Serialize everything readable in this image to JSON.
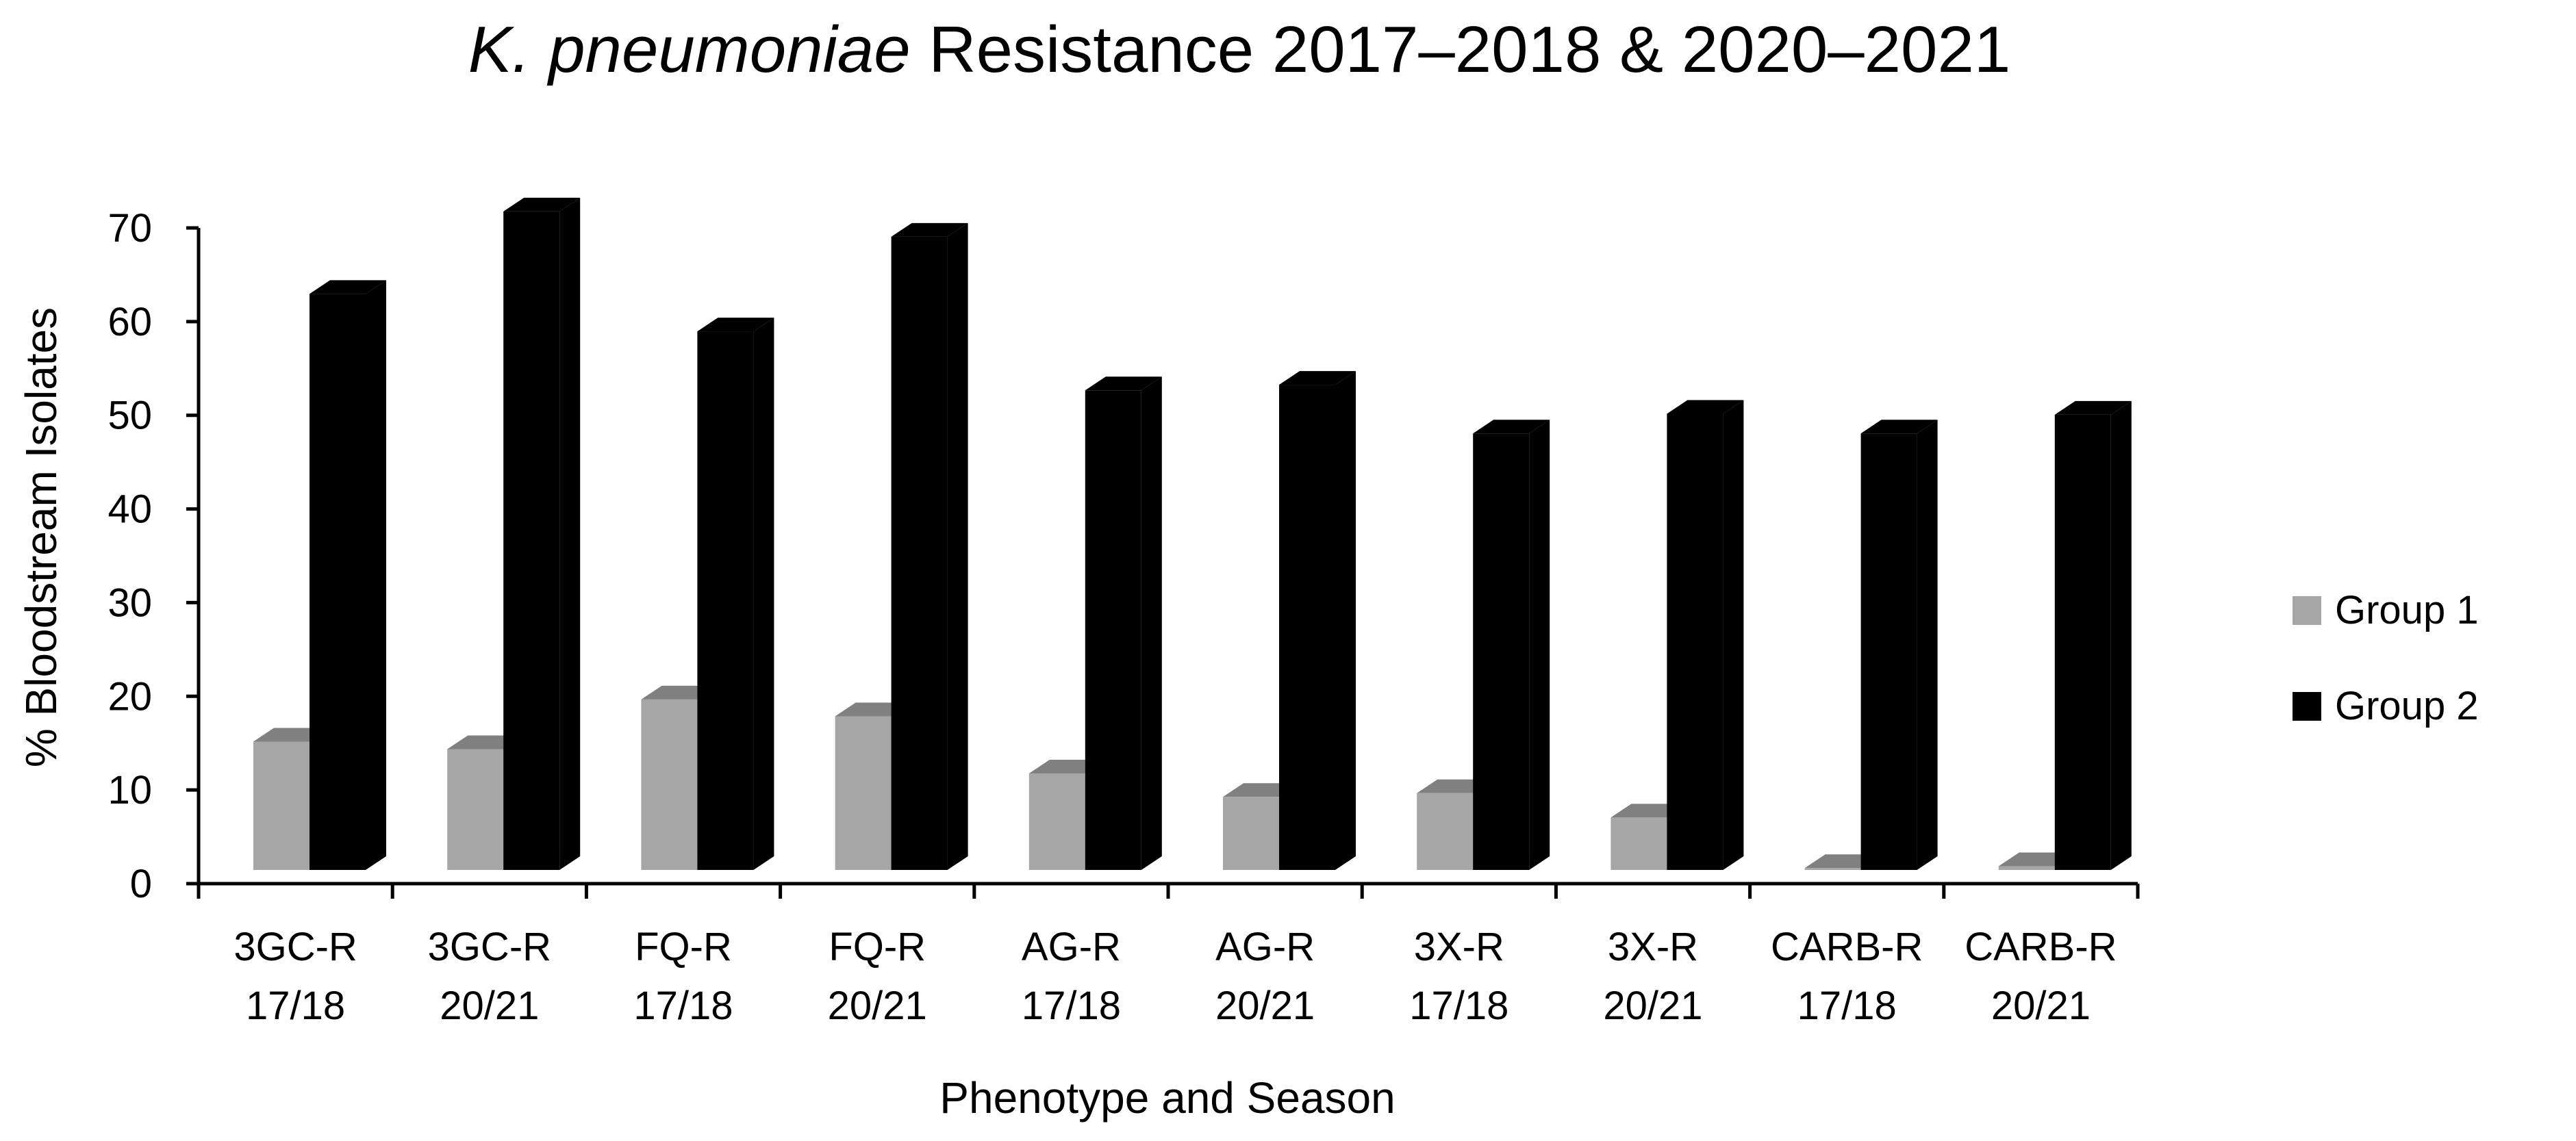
{
  "chart_data": {
    "type": "bar",
    "title_italic": "K. pneumoniae",
    "title_rest": " Resistance 2017–2018 & 2020–2021",
    "xlabel": "Phenotype and Season",
    "ylabel": "% Bloodstream Isolates",
    "ylim": [
      0,
      70
    ],
    "yticks": [
      "0",
      "10",
      "20",
      "30",
      "40",
      "50",
      "60",
      "70"
    ],
    "categories": [
      [
        "3GC-R",
        "17/18"
      ],
      [
        "3GC-R",
        "20/21"
      ],
      [
        "FQ-R",
        "17/18"
      ],
      [
        "FQ-R",
        "20/21"
      ],
      [
        "AG-R",
        "17/18"
      ],
      [
        "AG-R",
        "20/21"
      ],
      [
        "3X-R",
        "17/18"
      ],
      [
        "3X-R",
        "20/21"
      ],
      [
        "CARB-R",
        "17/18"
      ],
      [
        "CARB-R",
        "20/21"
      ]
    ],
    "series": [
      {
        "name": "Group 1",
        "color": "#a6a6a6",
        "top_color": "#808080",
        "values": [
          13.7,
          12.9,
          18.2,
          16.4,
          10.3,
          7.8,
          8.2,
          5.6,
          0.2,
          0.4
        ]
      },
      {
        "name": "Group 2",
        "color": "#000000",
        "top_color": "#000000",
        "values": [
          61.5,
          70.3,
          57.5,
          67.6,
          51.2,
          51.8,
          46.6,
          48.7,
          46.6,
          48.6
        ]
      }
    ],
    "legend_position": "right",
    "grid": false,
    "style": "3d-bar"
  }
}
